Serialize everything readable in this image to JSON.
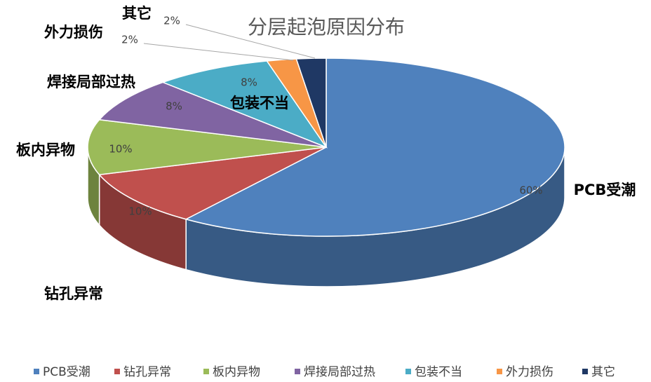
{
  "chart_data": {
    "type": "pie",
    "title": "分层起泡原因分布",
    "categories": [
      "PCB受潮",
      "钻孔异常",
      "板内异物",
      "焊接局部过热",
      "包装不当",
      "外力损伤",
      "其它"
    ],
    "values": [
      60,
      10,
      10,
      8,
      8,
      2,
      2
    ],
    "value_labels": [
      "60%",
      "10%",
      "10%",
      "8%",
      "8%",
      "2%",
      "2%"
    ],
    "colors": [
      "#4f81bd",
      "#c0504d",
      "#9bbb59",
      "#8064a2",
      "#4bacc6",
      "#f79646",
      "#1f3864"
    ],
    "legend": "bottom"
  }
}
